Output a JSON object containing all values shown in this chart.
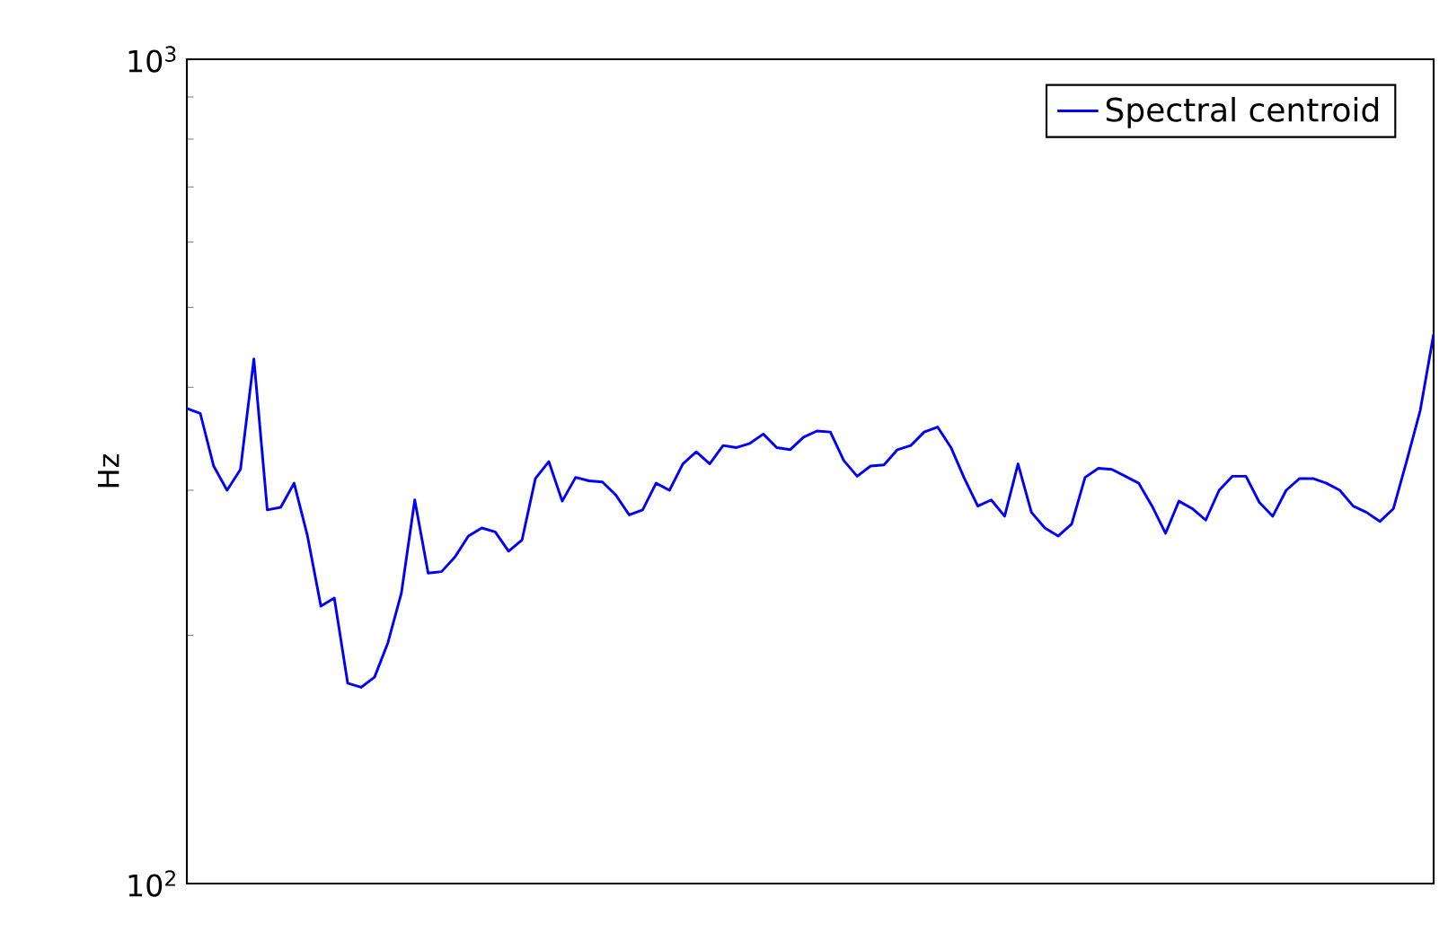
{
  "chart_data": {
    "type": "line",
    "ylabel": "Hz",
    "log": "y",
    "legend": "top right",
    "marker": "none",
    "line_style": "solid",
    "tick_labels": "y",
    "ylim": [
      100,
      1000
    ],
    "yticks": [
      {
        "value": 100,
        "label": "10$^{2}$"
      },
      {
        "value": 1000,
        "label": "10$^{3}$"
      }
    ],
    "categories": [
      null,
      null,
      null,
      null,
      null,
      null,
      null,
      null,
      null,
      null,
      null,
      null,
      null,
      null,
      null,
      null,
      null,
      null,
      null,
      null,
      null,
      null,
      null,
      null,
      null,
      null,
      null,
      null,
      null,
      null,
      null,
      null,
      null,
      null,
      null,
      null,
      null,
      null,
      null,
      null,
      null,
      null,
      null,
      null,
      null,
      null,
      null,
      null,
      null,
      null,
      null,
      null,
      null,
      null,
      null,
      null,
      null,
      null,
      null,
      null,
      null,
      null,
      null,
      null,
      null,
      null,
      null,
      null,
      null,
      null,
      null,
      null,
      null,
      null,
      null,
      null,
      null,
      null,
      null,
      null,
      null,
      null,
      null,
      null,
      null,
      null,
      null,
      null,
      null,
      null,
      null,
      null,
      null,
      null
    ],
    "series": [
      {
        "name": "Spectral centroid",
        "color": "#0000ff",
        "values": [
          377,
          372,
          321,
          300,
          318,
          433,
          284,
          286,
          306,
          264,
          217,
          222,
          175,
          173,
          178,
          196,
          225,
          292,
          238,
          239,
          249,
          264,
          270,
          267,
          253,
          261,
          310,
          325,
          291,
          311,
          308,
          307,
          296,
          280,
          284,
          306,
          300,
          323,
          334,
          323,
          340,
          338,
          342,
          351,
          338,
          336,
          348,
          354,
          353,
          326,
          312,
          321,
          322,
          336,
          340,
          353,
          358,
          338,
          310,
          287,
          292,
          279,
          323,
          282,
          270,
          264,
          273,
          311,
          319,
          318,
          312,
          306,
          287,
          266,
          291,
          285,
          276,
          300,
          312,
          312,
          290,
          279,
          300,
          310,
          310,
          306,
          300,
          287,
          282,
          275,
          285,
          326,
          375,
          464
        ]
      }
    ]
  }
}
